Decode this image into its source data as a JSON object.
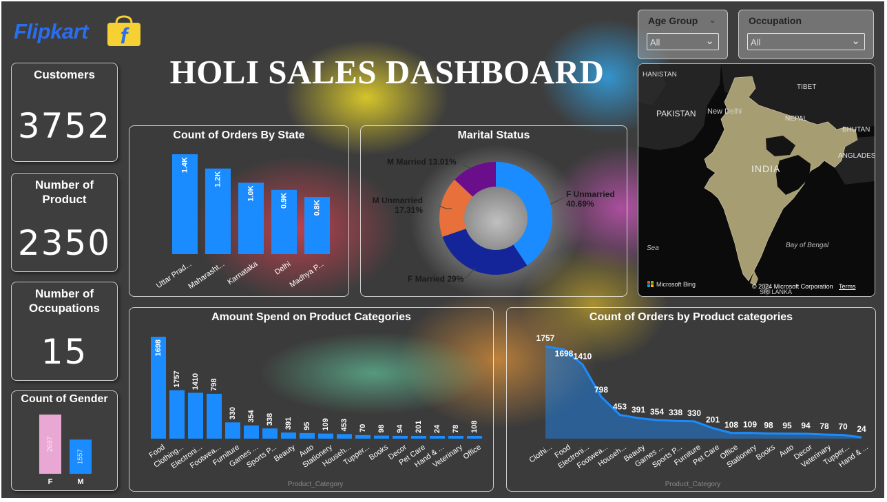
{
  "brand": {
    "name": "Flipkart",
    "logo_glyph": "f"
  },
  "title": "HOLI SALES DASHBOARD",
  "kpis": {
    "customers": {
      "label": "Customers",
      "value": "3752"
    },
    "products": {
      "label": "Number of Product",
      "value": "2350"
    },
    "occupations": {
      "label": "Number of Occupations",
      "value": "15"
    }
  },
  "slicers": {
    "age_group": {
      "label": "Age Group",
      "value": "All"
    },
    "occupation": {
      "label": "Occupation",
      "value": "All"
    }
  },
  "map": {
    "labels": {
      "pakistan": "PAKISTAN",
      "tibet": "TIBET",
      "nepal": "NEPAL",
      "india": "INDIA",
      "bhutan": "BHUTAN",
      "bangladesh": "ANGLADES",
      "new_delhi": "New Delhi",
      "sea": "Sea",
      "bay": "Bay of Bengal",
      "afghanistan": "HANISTAN",
      "sri_lanka": "SRI LANKA"
    },
    "bing": "Microsoft Bing",
    "copyright": "© 2024 Microsoft Corporation",
    "terms": "Terms"
  },
  "chart_data": [
    {
      "id": "gender",
      "type": "bar",
      "title": "Count of Gender",
      "categories": [
        "F",
        "M"
      ],
      "values": [
        2697,
        1557
      ],
      "data_labels": [
        "2697",
        "1557"
      ],
      "colors": [
        "#e9a8d3",
        "#1a8cff"
      ]
    },
    {
      "id": "orders_by_state",
      "type": "bar",
      "title": "Count of Orders By State",
      "categories": [
        "Uttar Prad...",
        "Maharasht...",
        "Karnataka",
        "Delhi",
        "Madhya P..."
      ],
      "values": [
        1400,
        1200,
        1000,
        900,
        800
      ],
      "data_labels": [
        "1.4K",
        "1.2K",
        "1.0K",
        "0.9K",
        "0.8K"
      ],
      "color": "#1a8cff"
    },
    {
      "id": "marital_status",
      "type": "pie",
      "title": "Marital Status",
      "categories": [
        "F Unmarried",
        "F Married",
        "M Unmarried",
        "M Married"
      ],
      "values": [
        40.69,
        29.0,
        17.31,
        13.01
      ],
      "data_labels": [
        "F Unmarried\n40.69%",
        "F Married 29%",
        "M Unmarried\n17.31%",
        "M Married 13.01%"
      ],
      "colors": [
        "#1a8cff",
        "#14259a",
        "#e8703a",
        "#6a0e8c"
      ]
    },
    {
      "id": "amount_by_category",
      "type": "bar",
      "title": "Amount Spend on Product Categories",
      "xlabel": "Product_Category",
      "categories": [
        "Food",
        "Clothing...",
        "Electroni...",
        "Footwea...",
        "Furniture",
        "Games ...",
        "Sports P...",
        "Beauty",
        "Auto",
        "Stationery",
        "Househ...",
        "Tupper...",
        "Books",
        "Decor",
        "Pet Care",
        "Hand & ...",
        "Veterinary",
        "Office"
      ],
      "values": [
        1698,
        1757,
        1410,
        798,
        330,
        354,
        338,
        391,
        95,
        109,
        453,
        70,
        98,
        94,
        201,
        24,
        78,
        108
      ],
      "heights": [
        2000,
        950,
        900,
        880,
        320,
        260,
        200,
        120,
        110,
        100,
        90,
        70,
        60,
        55,
        45,
        35,
        28,
        22
      ],
      "color": "#1a8cff"
    },
    {
      "id": "orders_by_category",
      "type": "area",
      "title": "Count of Orders by Product categories",
      "xlabel": "Product_Category",
      "categories": [
        "Clothi...",
        "Food",
        "Electroni...",
        "Footwea...",
        "Househ...",
        "Beauty",
        "Games ...",
        "Sports P...",
        "Furniture",
        "Pet Care",
        "Office",
        "Stationery",
        "Books",
        "Auto",
        "Decor",
        "Veterinary",
        "Tupper...",
        "Hand & ..."
      ],
      "values": [
        1757,
        1698,
        1410,
        798,
        453,
        391,
        354,
        338,
        330,
        201,
        108,
        109,
        98,
        95,
        94,
        78,
        70,
        24
      ],
      "color": "#1a8cff"
    }
  ]
}
